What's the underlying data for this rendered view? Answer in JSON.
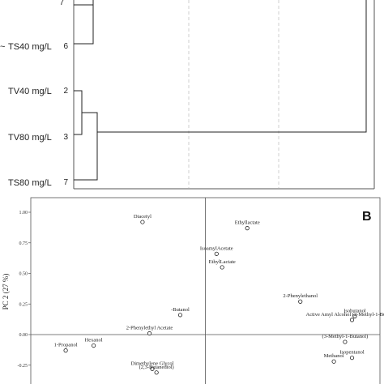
{
  "chart_data": [
    {
      "type": "dendrogram",
      "panel": "A",
      "leaves": [
        {
          "label": "TS40 mg/L",
          "index": "6",
          "prefix": "~"
        },
        {
          "label": "TV40 mg/L",
          "index": "2"
        },
        {
          "label": "TV80 mg/L",
          "index": "3"
        },
        {
          "label": "TS80 mg/L",
          "index": "7"
        }
      ]
    },
    {
      "type": "scatter",
      "panel": "B",
      "panel_letter": "B",
      "ylabel": "PC 2 (27 %)",
      "y_ticks": [
        "1.00",
        "0.75",
        "0.50",
        "0.25",
        "0.00",
        "-0.25"
      ],
      "points": [
        {
          "label": "Diacetyl",
          "x": -0.45,
          "y": 0.92
        },
        {
          "label": "Ethyllactate",
          "x": 0.3,
          "y": 0.87
        },
        {
          "label": "IsoamylAcetate",
          "x": 0.08,
          "y": 0.66
        },
        {
          "label": "EthylLactate",
          "x": 0.12,
          "y": 0.55
        },
        {
          "label": "2-Phenylethanol",
          "x": 0.68,
          "y": 0.27
        },
        {
          "label": "Isobutanol",
          "x": 1.07,
          "y": 0.15
        },
        {
          "label": "Active Amyl Alcohol (2-Methyl-1-Butanol)",
          "x": 1.05,
          "y": 0.12
        },
        {
          "label": "-Butanol",
          "x": -0.18,
          "y": 0.16
        },
        {
          "label": "2-Phenylethyl Acetate",
          "x": -0.4,
          "y": 0.01
        },
        {
          "label": "Hexanol",
          "x": -0.8,
          "y": -0.09
        },
        {
          "label": "1-Propanol",
          "x": -1.0,
          "y": -0.13
        },
        {
          "label": "(3-Methyl-1-Butanol)",
          "x": 1.0,
          "y": -0.06
        },
        {
          "label": "Isopentanol",
          "x": 1.05,
          "y": -0.19
        },
        {
          "label": "Methanol",
          "x": 0.92,
          "y": -0.22
        },
        {
          "label": "Dimethylene Glycol",
          "x": -0.38,
          "y": -0.28
        },
        {
          "label": "(2,3-Butanediol)",
          "x": -0.35,
          "y": -0.31
        }
      ]
    }
  ]
}
